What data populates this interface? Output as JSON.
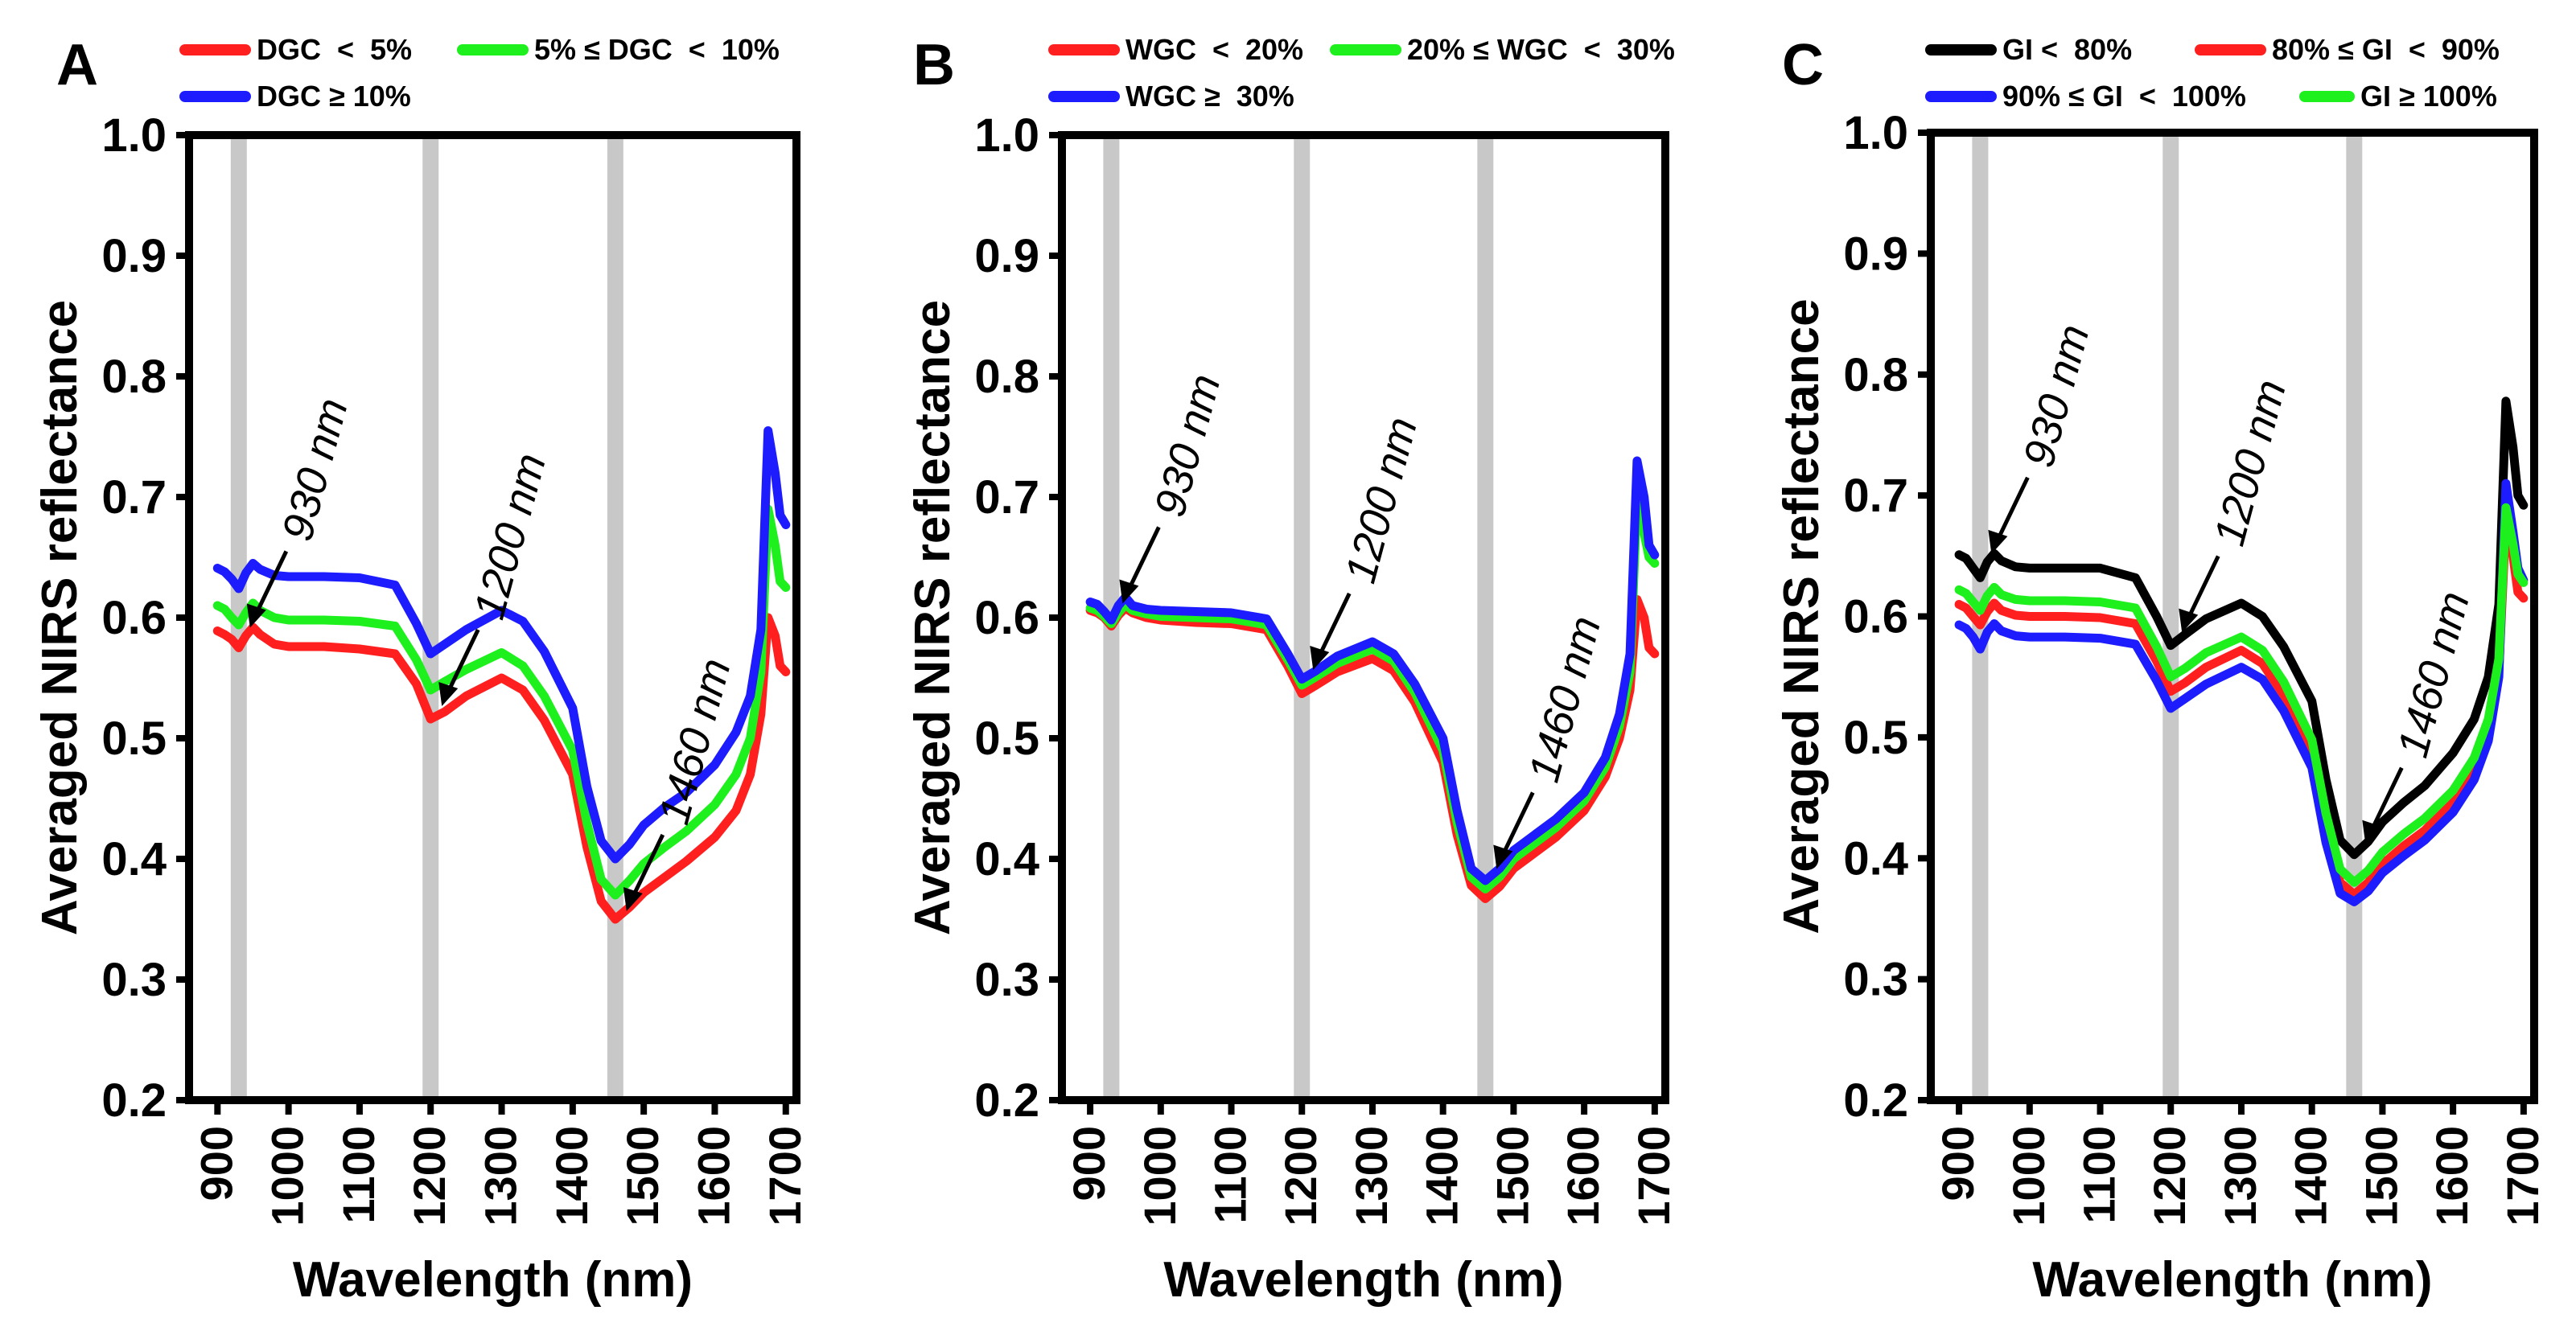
{
  "figure": {
    "axis_color": "#000000",
    "band_color": "#c8c8c8"
  },
  "chart_data": [
    {
      "id": "A",
      "type": "line",
      "panel_label": "A",
      "xlabel": "Wavelength (nm)",
      "ylabel": "Averaged NIRS reflectance",
      "xlim": [
        860,
        1715
      ],
      "ylim": [
        0.2,
        1.0
      ],
      "xticks": [
        900,
        1000,
        1100,
        1200,
        1300,
        1400,
        1500,
        1600,
        1700
      ],
      "yticks": [
        "0.2",
        "0.3",
        "0.4",
        "0.5",
        "0.6",
        "0.7",
        "0.8",
        "0.9",
        "1.0"
      ],
      "bands": [
        930,
        1200,
        1460
      ],
      "annotations": [
        {
          "text": "930 nm",
          "x": 930,
          "y": 0.585
        },
        {
          "text": "1200 nm",
          "x": 1200,
          "y": 0.52
        },
        {
          "text": "1460 nm",
          "x": 1460,
          "y": 0.35
        }
      ],
      "series": [
        {
          "name": "DGC  <  5%",
          "color": "#ff1f1f",
          "x": [
            900,
            910,
            920,
            930,
            940,
            950,
            960,
            980,
            1000,
            1050,
            1100,
            1150,
            1180,
            1200,
            1220,
            1250,
            1300,
            1330,
            1360,
            1400,
            1420,
            1440,
            1460,
            1480,
            1500,
            1530,
            1560,
            1600,
            1630,
            1650,
            1665,
            1675,
            1685,
            1692,
            1700
          ],
          "values": [
            0.589,
            0.586,
            0.582,
            0.575,
            0.585,
            0.592,
            0.586,
            0.578,
            0.576,
            0.576,
            0.574,
            0.57,
            0.545,
            0.516,
            0.522,
            0.535,
            0.55,
            0.54,
            0.515,
            0.47,
            0.41,
            0.365,
            0.35,
            0.36,
            0.372,
            0.385,
            0.398,
            0.418,
            0.44,
            0.47,
            0.52,
            0.6,
            0.585,
            0.56,
            0.555
          ]
        },
        {
          "name": "5% ≤ DGC  <  10%",
          "color": "#1ef01e",
          "x": [
            900,
            910,
            920,
            930,
            940,
            950,
            960,
            980,
            1000,
            1050,
            1100,
            1150,
            1180,
            1200,
            1220,
            1250,
            1300,
            1330,
            1360,
            1400,
            1420,
            1440,
            1460,
            1480,
            1500,
            1530,
            1560,
            1600,
            1630,
            1650,
            1665,
            1675,
            1685,
            1692,
            1700
          ],
          "values": [
            0.61,
            0.607,
            0.6,
            0.594,
            0.604,
            0.612,
            0.606,
            0.6,
            0.598,
            0.598,
            0.597,
            0.593,
            0.565,
            0.54,
            0.547,
            0.557,
            0.571,
            0.56,
            0.535,
            0.49,
            0.43,
            0.383,
            0.37,
            0.382,
            0.396,
            0.41,
            0.423,
            0.445,
            0.47,
            0.5,
            0.555,
            0.69,
            0.66,
            0.63,
            0.625
          ]
        },
        {
          "name": "DGC ≥ 10%",
          "color": "#1c1cff",
          "x": [
            900,
            910,
            920,
            930,
            940,
            950,
            960,
            980,
            1000,
            1050,
            1100,
            1150,
            1180,
            1200,
            1220,
            1250,
            1300,
            1330,
            1360,
            1400,
            1420,
            1440,
            1460,
            1480,
            1500,
            1530,
            1560,
            1600,
            1630,
            1650,
            1665,
            1675,
            1685,
            1692,
            1700
          ],
          "values": [
            0.641,
            0.638,
            0.632,
            0.624,
            0.637,
            0.645,
            0.64,
            0.635,
            0.634,
            0.634,
            0.633,
            0.627,
            0.595,
            0.57,
            0.578,
            0.59,
            0.606,
            0.597,
            0.572,
            0.525,
            0.46,
            0.415,
            0.4,
            0.412,
            0.428,
            0.443,
            0.455,
            0.478,
            0.505,
            0.535,
            0.59,
            0.755,
            0.72,
            0.685,
            0.677
          ]
        }
      ]
    },
    {
      "id": "B",
      "type": "line",
      "panel_label": "B",
      "xlabel": "Wavelength (nm)",
      "ylabel": "Averaged NIRS reflectance",
      "xlim": [
        860,
        1715
      ],
      "ylim": [
        0.2,
        1.0
      ],
      "xticks": [
        900,
        1000,
        1100,
        1200,
        1300,
        1400,
        1500,
        1600,
        1700
      ],
      "yticks": [
        "0.2",
        "0.3",
        "0.4",
        "0.5",
        "0.6",
        "0.7",
        "0.8",
        "0.9",
        "1.0"
      ],
      "bands": [
        930,
        1200,
        1460
      ],
      "annotations": [
        {
          "text": "930 nm",
          "x": 930,
          "y": 0.605
        },
        {
          "text": "1200 nm",
          "x": 1200,
          "y": 0.55
        },
        {
          "text": "1460 nm",
          "x": 1460,
          "y": 0.385
        }
      ],
      "series": [
        {
          "name": "WGC  <  20%",
          "color": "#ff1f1f",
          "x": [
            900,
            910,
            920,
            930,
            940,
            950,
            960,
            980,
            1000,
            1050,
            1100,
            1150,
            1180,
            1200,
            1220,
            1250,
            1300,
            1330,
            1360,
            1400,
            1420,
            1440,
            1460,
            1480,
            1500,
            1530,
            1560,
            1600,
            1630,
            1650,
            1665,
            1675,
            1685,
            1692,
            1700
          ],
          "values": [
            0.606,
            0.604,
            0.6,
            0.593,
            0.602,
            0.608,
            0.604,
            0.6,
            0.598,
            0.596,
            0.595,
            0.59,
            0.56,
            0.537,
            0.544,
            0.555,
            0.566,
            0.556,
            0.53,
            0.48,
            0.42,
            0.378,
            0.367,
            0.377,
            0.392,
            0.405,
            0.418,
            0.44,
            0.468,
            0.5,
            0.54,
            0.615,
            0.6,
            0.575,
            0.57
          ]
        },
        {
          "name": "20% ≤ WGC  <  30%",
          "color": "#1ef01e",
          "x": [
            900,
            910,
            920,
            930,
            940,
            950,
            960,
            980,
            1000,
            1050,
            1100,
            1150,
            1180,
            1200,
            1220,
            1250,
            1300,
            1330,
            1360,
            1400,
            1420,
            1440,
            1460,
            1480,
            1500,
            1530,
            1560,
            1600,
            1630,
            1650,
            1665,
            1675,
            1685,
            1692,
            1700
          ],
          "values": [
            0.608,
            0.606,
            0.601,
            0.595,
            0.604,
            0.611,
            0.606,
            0.603,
            0.601,
            0.6,
            0.599,
            0.594,
            0.565,
            0.544,
            0.551,
            0.562,
            0.574,
            0.564,
            0.538,
            0.49,
            0.43,
            0.385,
            0.375,
            0.385,
            0.4,
            0.413,
            0.426,
            0.448,
            0.476,
            0.51,
            0.555,
            0.7,
            0.67,
            0.65,
            0.645
          ]
        },
        {
          "name": "WGC ≥  30%",
          "color": "#1c1cff",
          "x": [
            900,
            910,
            920,
            930,
            940,
            950,
            960,
            980,
            1000,
            1050,
            1100,
            1150,
            1180,
            1200,
            1220,
            1250,
            1300,
            1330,
            1360,
            1400,
            1420,
            1440,
            1460,
            1480,
            1500,
            1530,
            1560,
            1600,
            1630,
            1650,
            1665,
            1675,
            1685,
            1692,
            1700
          ],
          "values": [
            0.613,
            0.611,
            0.605,
            0.598,
            0.61,
            0.617,
            0.61,
            0.607,
            0.606,
            0.605,
            0.604,
            0.599,
            0.57,
            0.549,
            0.556,
            0.568,
            0.58,
            0.57,
            0.545,
            0.5,
            0.44,
            0.392,
            0.382,
            0.392,
            0.407,
            0.42,
            0.433,
            0.455,
            0.484,
            0.52,
            0.57,
            0.73,
            0.7,
            0.66,
            0.652
          ]
        }
      ]
    },
    {
      "id": "C",
      "type": "line",
      "panel_label": "C",
      "xlabel": "Wavelength (nm)",
      "ylabel": "Averaged NIRS reflectance",
      "xlim": [
        860,
        1715
      ],
      "ylim": [
        0.2,
        1.0
      ],
      "xticks": [
        900,
        1000,
        1100,
        1200,
        1300,
        1400,
        1500,
        1600,
        1700
      ],
      "yticks": [
        "0.2",
        "0.3",
        "0.4",
        "0.5",
        "0.6",
        "0.7",
        "0.8",
        "0.9",
        "1.0"
      ],
      "bands": [
        930,
        1200,
        1460
      ],
      "annotations": [
        {
          "text": "930 nm",
          "x": 930,
          "y": 0.645
        },
        {
          "text": "1200 nm",
          "x": 1200,
          "y": 0.58
        },
        {
          "text": "1460 nm",
          "x": 1460,
          "y": 0.405
        }
      ],
      "series": [
        {
          "name": "GI <  80%",
          "color": "#000000",
          "x": [
            900,
            910,
            920,
            930,
            940,
            950,
            960,
            980,
            1000,
            1050,
            1100,
            1150,
            1180,
            1200,
            1220,
            1250,
            1300,
            1330,
            1360,
            1400,
            1420,
            1440,
            1460,
            1480,
            1500,
            1530,
            1560,
            1600,
            1630,
            1650,
            1665,
            1675,
            1685,
            1692,
            1700
          ],
          "values": [
            0.651,
            0.648,
            0.64,
            0.632,
            0.645,
            0.652,
            0.646,
            0.641,
            0.64,
            0.64,
            0.64,
            0.632,
            0.6,
            0.576,
            0.585,
            0.598,
            0.611,
            0.6,
            0.575,
            0.53,
            0.465,
            0.415,
            0.403,
            0.414,
            0.43,
            0.446,
            0.46,
            0.487,
            0.515,
            0.55,
            0.61,
            0.778,
            0.74,
            0.7,
            0.692
          ]
        },
        {
          "name": "80% ≤ GI  <  90%",
          "color": "#ff1f1f",
          "x": [
            900,
            910,
            920,
            930,
            940,
            950,
            960,
            980,
            1000,
            1050,
            1100,
            1150,
            1180,
            1200,
            1220,
            1250,
            1300,
            1330,
            1360,
            1400,
            1420,
            1440,
            1460,
            1480,
            1500,
            1530,
            1560,
            1600,
            1630,
            1650,
            1665,
            1675,
            1685,
            1692,
            1700
          ],
          "values": [
            0.61,
            0.607,
            0.6,
            0.593,
            0.604,
            0.611,
            0.605,
            0.601,
            0.6,
            0.6,
            0.599,
            0.594,
            0.563,
            0.538,
            0.545,
            0.558,
            0.572,
            0.561,
            0.535,
            0.487,
            0.425,
            0.38,
            0.37,
            0.38,
            0.395,
            0.41,
            0.423,
            0.447,
            0.475,
            0.505,
            0.555,
            0.68,
            0.65,
            0.62,
            0.615
          ]
        },
        {
          "name": "90% ≤ GI  <  100%",
          "color": "#1c1cff",
          "x": [
            900,
            910,
            920,
            930,
            940,
            950,
            960,
            980,
            1000,
            1050,
            1100,
            1150,
            1180,
            1200,
            1220,
            1250,
            1300,
            1330,
            1360,
            1400,
            1420,
            1440,
            1460,
            1480,
            1500,
            1530,
            1560,
            1600,
            1630,
            1650,
            1665,
            1675,
            1685,
            1692,
            1700
          ],
          "values": [
            0.593,
            0.59,
            0.583,
            0.573,
            0.587,
            0.594,
            0.588,
            0.584,
            0.583,
            0.583,
            0.582,
            0.577,
            0.547,
            0.524,
            0.532,
            0.544,
            0.558,
            0.548,
            0.522,
            0.475,
            0.413,
            0.371,
            0.364,
            0.373,
            0.388,
            0.402,
            0.415,
            0.438,
            0.465,
            0.497,
            0.55,
            0.71,
            0.67,
            0.64,
            0.63
          ]
        },
        {
          "name": "GI ≥ 100%",
          "color": "#1ef01e",
          "x": [
            900,
            910,
            920,
            930,
            940,
            950,
            960,
            980,
            1000,
            1050,
            1100,
            1150,
            1180,
            1200,
            1220,
            1250,
            1300,
            1330,
            1360,
            1400,
            1420,
            1440,
            1460,
            1480,
            1500,
            1530,
            1560,
            1600,
            1630,
            1650,
            1665,
            1675,
            1685,
            1692,
            1700
          ],
          "values": [
            0.622,
            0.619,
            0.612,
            0.605,
            0.617,
            0.624,
            0.618,
            0.614,
            0.613,
            0.613,
            0.612,
            0.607,
            0.575,
            0.55,
            0.557,
            0.57,
            0.583,
            0.572,
            0.546,
            0.498,
            0.437,
            0.391,
            0.38,
            0.39,
            0.405,
            0.42,
            0.433,
            0.456,
            0.483,
            0.515,
            0.565,
            0.69,
            0.66,
            0.635,
            0.628
          ]
        }
      ]
    }
  ]
}
